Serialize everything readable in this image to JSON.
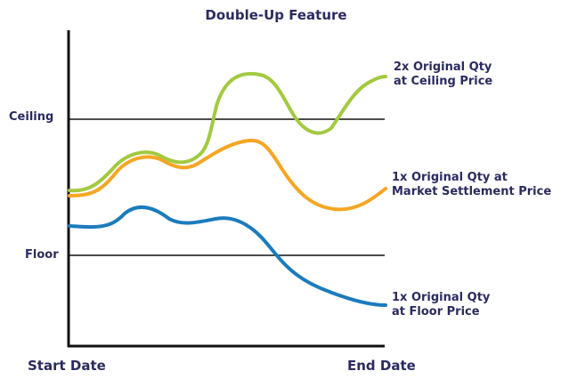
{
  "title": "Double-Up Feature",
  "y_levels": {
    "ceiling": "Ceiling",
    "floor": "Floor"
  },
  "x_labels": {
    "start": "Start Date",
    "end": "End Date"
  },
  "annotations": [
    {
      "line1": "2x Original Qty",
      "line2": "at Ceiling Price"
    },
    {
      "line1": "1x Original Qty at",
      "line2": "Market Settlement Price"
    },
    {
      "line1": "1x Original Qty",
      "line2": "at Floor Price"
    }
  ],
  "colors": {
    "green": "#a3c940",
    "orange": "#f5a623",
    "blue": "#1b7bbd",
    "text": "#2b2b5e",
    "axis": "#111111"
  }
}
